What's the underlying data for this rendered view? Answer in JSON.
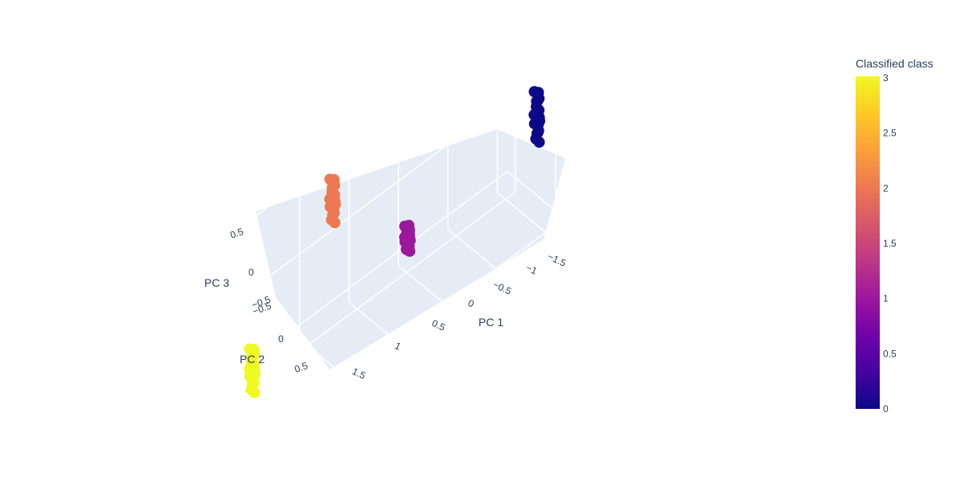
{
  "chart_data": {
    "type": "scatter3d",
    "axes": {
      "x": {
        "title": "PC 1",
        "range": [
          -1.6,
          1.6
        ],
        "ticks": [
          "−1.5",
          "−1",
          "−0.5",
          "0",
          "0.5",
          "1",
          "1.5"
        ]
      },
      "y": {
        "title": "PC 2",
        "range": [
          -0.6,
          0.6
        ],
        "ticks": [
          "−0.5",
          "0",
          "0.5"
        ]
      },
      "z": {
        "title": "PC 3",
        "range": [
          -0.6,
          0.6
        ],
        "ticks": [
          "−0.5",
          "0",
          "0.5"
        ]
      }
    },
    "grid": true,
    "clusters": [
      {
        "class": 0,
        "color": "#0d0887",
        "x": -1.5,
        "y": -0.1,
        "z_range": [
          0.0,
          0.35
        ]
      },
      {
        "class": 1,
        "color": "#9c179e",
        "x": -0.15,
        "y": -0.05,
        "z_range": [
          -0.05,
          0.12
        ]
      },
      {
        "class": 2,
        "color": "#ed7953",
        "x": 0.2,
        "y": -0.55,
        "z_range": [
          0.1,
          0.4
        ]
      },
      {
        "class": 3,
        "color": "#f0f921",
        "x": 1.5,
        "y": 0.05,
        "z_range": [
          -0.15,
          0.15
        ]
      }
    ],
    "colorbar": {
      "title": "Classified class",
      "range": [
        0,
        3
      ],
      "ticks": [
        "0",
        "0.5",
        "1",
        "1.5",
        "2",
        "2.5",
        "3"
      ],
      "colorscale": [
        "#0d0887",
        "#46039f",
        "#7201a8",
        "#9c179e",
        "#bd3786",
        "#d8576b",
        "#ed7953",
        "#fb9f3a",
        "#fdca26",
        "#f0f921"
      ]
    }
  }
}
